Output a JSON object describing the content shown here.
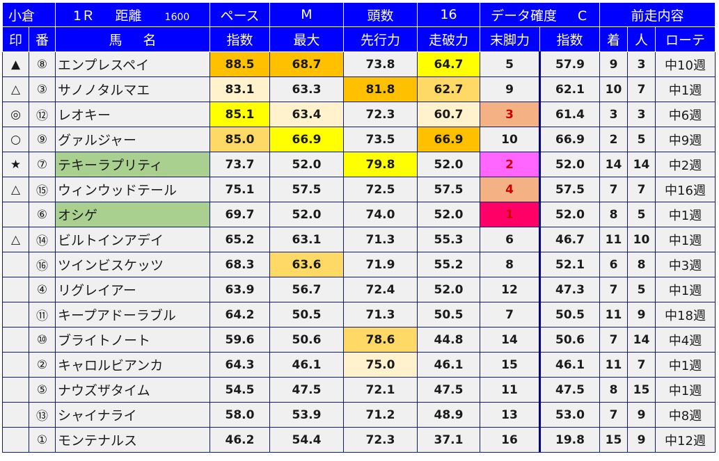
{
  "race": {
    "venue": "小倉",
    "race_no": "1Ｒ",
    "distance_label": "距離",
    "distance": "1600",
    "pace_label": "ペース",
    "pace": "M",
    "runners_label": "頭数",
    "runners": "16",
    "data_conf_label": "データ確度",
    "data_conf": "C",
    "prev_race_label": "前走内容"
  },
  "columns": {
    "mark": "印",
    "number": "番",
    "horse_name": "馬名",
    "index": "指数",
    "max": "最大",
    "early_speed": "先行力",
    "race_ability": "走破力",
    "closing": "末脚力",
    "prev_index": "指数",
    "prev_finish": "着",
    "prev_pop": "人",
    "rotation": "ローテ"
  },
  "colors": {
    "header_bg": "#0000ff",
    "cell_bg": "#f0f0f0",
    "cell_border": "#0d1a7a",
    "orange": "#ffc000",
    "yellow": "#ffff00",
    "light_orange": "#ffd966",
    "pale_yellow": "#fff2cc",
    "salmon": "#f4b183",
    "magenta": "#ff66ff",
    "crimson": "#ff0066",
    "green": "#a9d08e"
  },
  "rows": [
    {
      "mark": "▲",
      "no": "⑧",
      "name": "エンプレスペイ",
      "index": "88.5",
      "max": "68.7",
      "early": "73.8",
      "race": "64.7",
      "closing": "5",
      "p_index": "57.9",
      "p_fin": "9",
      "p_pop": "3",
      "rot": "中10週",
      "bg": {
        "index": "#ffc000",
        "max": "#ffc000",
        "race": "#ffff00"
      }
    },
    {
      "mark": "△",
      "no": "③",
      "name": "サノノタルマエ",
      "index": "83.1",
      "max": "63.3",
      "early": "81.8",
      "race": "62.7",
      "closing": "9",
      "p_index": "62.1",
      "p_fin": "10",
      "p_pop": "7",
      "rot": "中1週",
      "bg": {
        "index": "#fff2cc",
        "early": "#ffc000",
        "race": "#ffd966"
      }
    },
    {
      "mark": "◎",
      "no": "⑫",
      "name": "レオキー",
      "index": "85.1",
      "max": "63.4",
      "early": "72.3",
      "race": "60.7",
      "closing": "3",
      "p_index": "61.4",
      "p_fin": "3",
      "p_pop": "3",
      "rot": "中6週",
      "bg": {
        "index": "#ffff00",
        "max": "#fff2cc",
        "race": "#fff2cc",
        "closing": "#f4b183"
      },
      "red_closing": true
    },
    {
      "mark": "○",
      "no": "⑨",
      "name": "グァルジャー",
      "index": "85.0",
      "max": "66.9",
      "early": "73.5",
      "race": "66.9",
      "closing": "10",
      "p_index": "66.9",
      "p_fin": "2",
      "p_pop": "5",
      "rot": "中9週",
      "bg": {
        "index": "#ffd966",
        "max": "#ffff00",
        "race": "#ffc000"
      }
    },
    {
      "mark": "★",
      "no": "⑦",
      "name": "テキーラプリティ",
      "index": "73.7",
      "max": "52.0",
      "early": "79.8",
      "race": "52.0",
      "closing": "2",
      "p_index": "52.0",
      "p_fin": "14",
      "p_pop": "14",
      "rot": "中2週",
      "bg": {
        "name": "#a9d08e",
        "early": "#ffff00",
        "closing": "#ff66ff"
      },
      "red_closing": true
    },
    {
      "mark": "△",
      "no": "⑮",
      "name": "ウィンウッドテール",
      "index": "75.1",
      "max": "57.5",
      "early": "72.5",
      "race": "57.5",
      "closing": "4",
      "p_index": "57.5",
      "p_fin": "7",
      "p_pop": "7",
      "rot": "中16週",
      "bg": {
        "closing": "#f4b183"
      },
      "red_closing": true
    },
    {
      "mark": "",
      "no": "⑥",
      "name": "オシゲ",
      "index": "69.7",
      "max": "52.0",
      "early": "74.0",
      "race": "52.0",
      "closing": "1",
      "p_index": "52.0",
      "p_fin": "8",
      "p_pop": "5",
      "rot": "中1週",
      "bg": {
        "name": "#a9d08e",
        "closing": "#ff0066"
      },
      "red_closing": true
    },
    {
      "mark": "△",
      "no": "⑭",
      "name": "ビルトインアデイ",
      "index": "65.2",
      "max": "63.1",
      "early": "71.3",
      "race": "55.3",
      "closing": "6",
      "p_index": "46.7",
      "p_fin": "11",
      "p_pop": "10",
      "rot": "中1週",
      "bg": {}
    },
    {
      "mark": "",
      "no": "⑯",
      "name": "ツインビスケッツ",
      "index": "68.3",
      "max": "63.6",
      "early": "71.9",
      "race": "55.2",
      "closing": "8",
      "p_index": "52.1",
      "p_fin": "6",
      "p_pop": "8",
      "rot": "中3週",
      "bg": {
        "max": "#ffd966"
      }
    },
    {
      "mark": "",
      "no": "④",
      "name": "リグレイアー",
      "index": "63.9",
      "max": "56.7",
      "early": "72.4",
      "race": "52.0",
      "closing": "12",
      "p_index": "47.3",
      "p_fin": "7",
      "p_pop": "5",
      "rot": "中1週",
      "bg": {}
    },
    {
      "mark": "",
      "no": "⑪",
      "name": "キープアドーラブル",
      "index": "64.2",
      "max": "50.5",
      "early": "71.3",
      "race": "50.5",
      "closing": "7",
      "p_index": "50.5",
      "p_fin": "11",
      "p_pop": "9",
      "rot": "中18週",
      "bg": {}
    },
    {
      "mark": "",
      "no": "⑩",
      "name": "ブライトノート",
      "index": "59.6",
      "max": "50.6",
      "early": "78.6",
      "race": "44.8",
      "closing": "14",
      "p_index": "50.6",
      "p_fin": "7",
      "p_pop": "14",
      "rot": "中4週",
      "bg": {
        "early": "#ffd966"
      }
    },
    {
      "mark": "",
      "no": "②",
      "name": "キャロルビアンカ",
      "index": "64.3",
      "max": "46.1",
      "early": "75.0",
      "race": "46.1",
      "closing": "15",
      "p_index": "46.1",
      "p_fin": "11",
      "p_pop": "7",
      "rot": "中1週",
      "bg": {
        "early": "#fff2cc"
      }
    },
    {
      "mark": "",
      "no": "⑤",
      "name": "ナウズザタイム",
      "index": "54.5",
      "max": "47.5",
      "early": "72.1",
      "race": "47.5",
      "closing": "11",
      "p_index": "47.5",
      "p_fin": "8",
      "p_pop": "15",
      "rot": "中1週",
      "bg": {}
    },
    {
      "mark": "",
      "no": "⑬",
      "name": "シャイナライ",
      "index": "58.0",
      "max": "53.9",
      "early": "71.2",
      "race": "48.9",
      "closing": "13",
      "p_index": "53.0",
      "p_fin": "7",
      "p_pop": "9",
      "rot": "中8週",
      "bg": {}
    },
    {
      "mark": "",
      "no": "①",
      "name": "モンテナルス",
      "index": "46.2",
      "max": "54.4",
      "early": "72.3",
      "race": "37.1",
      "closing": "16",
      "p_index": "19.8",
      "p_fin": "15",
      "p_pop": "9",
      "rot": "中12週",
      "bg": {}
    }
  ]
}
